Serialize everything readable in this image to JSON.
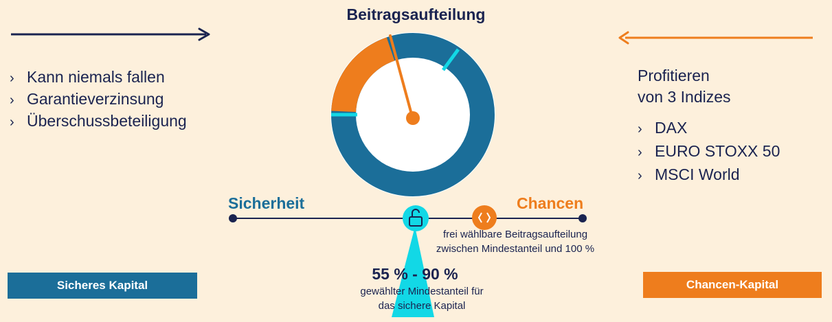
{
  "title": "Beitragsaufteilung",
  "left": {
    "bullets": [
      "Kann niemals fallen",
      "Garantieverzinsung",
      "Überschussbeteiligung"
    ]
  },
  "right": {
    "heading_line1": "Profitieren",
    "heading_line2": "von 3 Indizes",
    "bullets": [
      "DAX",
      "EURO STOXX 50",
      "MSCI World"
    ]
  },
  "scale": {
    "left_label": "Sicherheit",
    "right_label": "Chancen",
    "free_text_line1": "frei wählbare Beitragsaufteilung",
    "free_text_line2": "zwischen Mindestanteil und 100 %",
    "range_value": "55 % - 90 %",
    "range_text_line1": "gewählter Mindestanteil für",
    "range_text_line2": "das sichere Kapital"
  },
  "boxes": {
    "safe": "Sicheres Kapital",
    "chance": "Chancen-Kapital"
  },
  "chevron": "›",
  "colors": {
    "navy": "#1a2350",
    "blue": "#1b6e99",
    "orange": "#ee7d1d",
    "cyan": "#12d8e6",
    "background": "#fdf0dc"
  },
  "icons": [
    "arrow-right-icon",
    "arrow-left-icon",
    "unlock-icon",
    "code-brackets-icon"
  ]
}
